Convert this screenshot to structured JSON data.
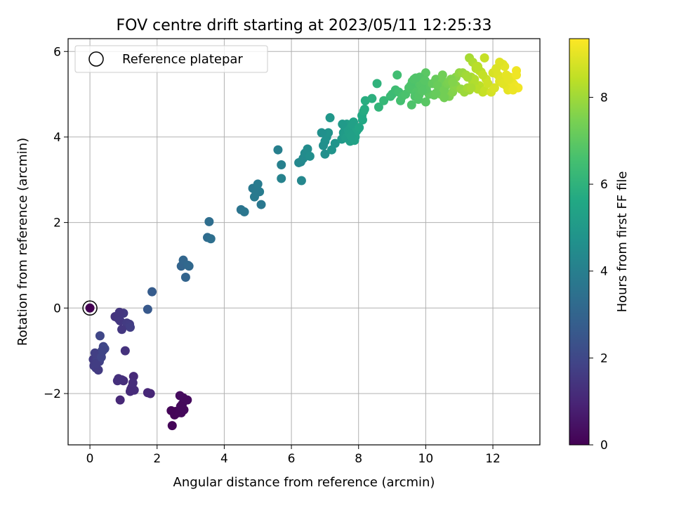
{
  "chart_data": {
    "type": "scatter",
    "title": "FOV centre drift starting at 2023/05/11 12:25:33",
    "xlabel": "Angular distance from reference (arcmin)",
    "ylabel": "Rotation from reference (arcmin)",
    "xlim": [
      -0.65,
      13.4
    ],
    "ylim": [
      -3.2,
      6.3
    ],
    "xticks": [
      0,
      2,
      4,
      6,
      8,
      10,
      12
    ],
    "yticks": [
      -2,
      0,
      2,
      4,
      6
    ],
    "xtick_labels": [
      "0",
      "2",
      "4",
      "6",
      "8",
      "10",
      "12"
    ],
    "ytick_labels": [
      "−2",
      "0",
      "2",
      "4",
      "6"
    ],
    "grid": true,
    "legend": {
      "placement": "top-left",
      "entries": [
        "Reference platepar"
      ]
    },
    "reference_point": {
      "x": 0.0,
      "y": 0.0
    },
    "colorbar": {
      "label": "Hours from first FF file",
      "colormap": "viridis",
      "range": [
        0,
        9.35
      ],
      "ticks": [
        0,
        2,
        4,
        6,
        8
      ],
      "tick_labels": [
        "0",
        "2",
        "4",
        "6",
        "8"
      ]
    },
    "series": [
      {
        "x": [
          0.0,
          2.45,
          2.52,
          2.62,
          2.72,
          2.8,
          2.75,
          2.9,
          2.55,
          2.78,
          2.68,
          2.42,
          2.7,
          1.8,
          1.72,
          1.3,
          1.25,
          1.22,
          1.32,
          1.28,
          1.0,
          0.95,
          0.85,
          0.9,
          0.82,
          1.2,
          0.1,
          0.12,
          0.18,
          0.22,
          0.28,
          0.32,
          0.36,
          0.4,
          0.44,
          0.3,
          0.25,
          0.2,
          0.15,
          0.34,
          0.38,
          0.75,
          0.85,
          0.9,
          1.0,
          1.1,
          1.18,
          1.2,
          1.05,
          0.95,
          0.88,
          1.72,
          1.85,
          2.72,
          2.78,
          2.95,
          2.85,
          2.92,
          3.5,
          3.6,
          3.55,
          4.5,
          4.6,
          4.85,
          4.9,
          5.0,
          5.05,
          5.1,
          4.95,
          5.6,
          5.7,
          5.7,
          6.22,
          6.28,
          6.35,
          6.4,
          6.48,
          6.55,
          6.3,
          6.95,
          7.0,
          7.05,
          7.1,
          7.15,
          7.0,
          6.9,
          7.2,
          7.3,
          7.5,
          7.55,
          7.6,
          7.65,
          7.7,
          7.75,
          7.8,
          7.85,
          7.9,
          7.95,
          8.0,
          7.58,
          7.68,
          7.82,
          7.92,
          8.02,
          7.62,
          7.72,
          7.88,
          7.52,
          7.78,
          8.1,
          8.15,
          8.2,
          8.12,
          8.18,
          8.4,
          8.55,
          8.6,
          8.75,
          8.95,
          9.0,
          9.1,
          9.15,
          9.2,
          9.25,
          9.3,
          9.4,
          9.5,
          9.6,
          9.7,
          9.8,
          9.9,
          10.0,
          10.1,
          9.55,
          9.65,
          9.75,
          9.85,
          9.95,
          10.05,
          9.62,
          9.72,
          9.82,
          9.92,
          10.02,
          9.68,
          9.78,
          9.88,
          9.98,
          9.58,
          9.7,
          9.8,
          9.9,
          10.0,
          10.2,
          10.3,
          10.4,
          10.5,
          10.6,
          10.7,
          10.8,
          10.9,
          11.0,
          10.35,
          10.45,
          10.55,
          10.65,
          10.75,
          10.85,
          10.25,
          10.5,
          10.7,
          10.9,
          11.05,
          10.3,
          10.55,
          10.8,
          11.1,
          11.2,
          11.3,
          11.4,
          11.5,
          11.6,
          11.7,
          11.8,
          11.15,
          11.25,
          11.35,
          11.45,
          11.55,
          11.65,
          11.75,
          11.85,
          11.95,
          11.3,
          11.4,
          11.5,
          11.6,
          11.7,
          11.35,
          11.45,
          11.55,
          11.25,
          11.75,
          12.0,
          12.1,
          12.2,
          12.3,
          12.4,
          12.5,
          12.6,
          12.7,
          12.05,
          12.15,
          12.25,
          12.35,
          12.45,
          12.55,
          12.65,
          12.75,
          12.2,
          12.4,
          12.6,
          12.3,
          12.5,
          12.7,
          12.1,
          12.45
        ],
        "y": [
          0.0,
          -2.75,
          -2.5,
          -2.45,
          -2.45,
          -2.38,
          -2.25,
          -2.15,
          -2.42,
          -2.1,
          -2.05,
          -2.4,
          -2.3,
          -2.0,
          -1.98,
          -1.6,
          -1.85,
          -1.9,
          -1.92,
          -1.75,
          -1.7,
          -1.68,
          -1.65,
          -2.15,
          -1.7,
          -1.95,
          -1.2,
          -1.35,
          -1.4,
          -1.2,
          -1.25,
          -1.1,
          -1.0,
          -0.9,
          -0.95,
          -0.65,
          -1.45,
          -1.3,
          -1.05,
          -1.15,
          -1.0,
          -0.2,
          -0.25,
          -0.3,
          -0.12,
          -0.35,
          -0.38,
          -0.45,
          -1.0,
          -0.5,
          -0.1,
          -0.03,
          0.38,
          0.98,
          1.12,
          0.98,
          0.72,
          1.0,
          1.65,
          1.62,
          2.02,
          2.3,
          2.25,
          2.8,
          2.6,
          2.9,
          2.72,
          2.42,
          2.7,
          3.7,
          3.35,
          3.03,
          3.4,
          3.42,
          3.5,
          3.62,
          3.72,
          3.55,
          2.98,
          3.8,
          3.9,
          4.0,
          4.1,
          4.45,
          3.6,
          4.1,
          3.7,
          3.85,
          3.95,
          4.1,
          4.2,
          4.3,
          4.0,
          3.9,
          4.25,
          4.35,
          4.0,
          4.15,
          4.2,
          4.05,
          4.18,
          4.28,
          4.12,
          4.22,
          3.98,
          4.08,
          3.92,
          4.3,
          4.02,
          4.5,
          4.6,
          4.85,
          4.4,
          4.65,
          4.9,
          5.25,
          4.7,
          4.85,
          4.95,
          5.0,
          5.1,
          5.45,
          5.05,
          4.85,
          4.95,
          5.0,
          5.15,
          5.3,
          5.25,
          5.1,
          5.2,
          5.5,
          5.0,
          5.2,
          5.35,
          5.0,
          5.3,
          5.15,
          5.25,
          5.1,
          5.05,
          5.4,
          5.25,
          5.12,
          4.95,
          4.88,
          5.18,
          5.32,
          4.75,
          5.38,
          4.98,
          5.08,
          4.82,
          5.25,
          5.35,
          5.1,
          5.3,
          5.2,
          4.95,
          5.05,
          5.4,
          5.5,
          5.2,
          5.0,
          5.1,
          5.25,
          5.35,
          5.15,
          4.98,
          5.45,
          5.3,
          5.2,
          5.12,
          5.02,
          4.92,
          5.28,
          5.5,
          5.45,
          5.1,
          5.3,
          5.6,
          5.2,
          5.05,
          5.35,
          5.05,
          5.15,
          5.4,
          5.22,
          5.12,
          5.52,
          5.08,
          5.25,
          5.05,
          5.85,
          5.75,
          5.65,
          5.55,
          5.45,
          5.15,
          5.35,
          5.65,
          5.4,
          5.85,
          5.5,
          5.6,
          5.3,
          5.7,
          5.2,
          5.4,
          5.25,
          5.55,
          5.15,
          5.45,
          5.35,
          5.65,
          5.1,
          5.3,
          5.2,
          5.15,
          5.75,
          5.45,
          5.1,
          5.25,
          5.35,
          5.45,
          5.6,
          5.35
        ],
        "color_values": [
          0.0,
          0.1,
          0.12,
          0.15,
          0.18,
          0.2,
          0.22,
          0.25,
          0.13,
          0.24,
          0.27,
          0.11,
          0.21,
          1.0,
          1.02,
          1.1,
          1.12,
          1.15,
          1.18,
          1.2,
          1.22,
          1.25,
          1.28,
          1.05,
          1.3,
          1.14,
          1.6,
          1.65,
          1.7,
          1.75,
          1.8,
          1.85,
          1.9,
          1.95,
          2.0,
          1.98,
          1.62,
          1.68,
          1.72,
          1.88,
          1.92,
          1.4,
          1.45,
          1.5,
          1.55,
          1.6,
          1.65,
          1.7,
          1.35,
          1.5,
          1.45,
          2.6,
          2.7,
          3.0,
          3.05,
          3.1,
          3.0,
          3.15,
          3.3,
          3.4,
          3.35,
          3.6,
          3.65,
          3.75,
          3.8,
          3.85,
          3.9,
          3.7,
          3.8,
          4.0,
          4.05,
          4.1,
          4.3,
          4.35,
          4.4,
          4.45,
          4.5,
          4.55,
          4.3,
          4.6,
          4.65,
          4.7,
          4.75,
          4.9,
          4.6,
          4.65,
          4.8,
          4.85,
          5.0,
          5.05,
          5.1,
          5.15,
          5.2,
          5.25,
          5.3,
          5.35,
          5.4,
          5.45,
          5.5,
          5.1,
          5.2,
          5.3,
          5.4,
          5.5,
          5.15,
          5.25,
          5.35,
          5.05,
          5.3,
          5.6,
          5.7,
          5.8,
          5.6,
          5.75,
          5.9,
          6.0,
          6.1,
          6.2,
          6.3,
          6.35,
          6.4,
          6.45,
          6.5,
          6.55,
          6.6,
          6.65,
          6.7,
          6.75,
          6.8,
          6.85,
          6.9,
          6.95,
          7.0,
          6.7,
          6.75,
          6.8,
          6.85,
          6.9,
          6.95,
          6.72,
          6.78,
          6.82,
          6.88,
          6.92,
          6.74,
          6.79,
          6.84,
          6.89,
          6.71,
          6.77,
          6.81,
          6.86,
          6.91,
          7.1,
          7.15,
          7.2,
          7.3,
          7.4,
          7.5,
          7.6,
          7.7,
          7.8,
          7.2,
          7.3,
          7.35,
          7.45,
          7.55,
          7.65,
          7.1,
          7.3,
          7.5,
          7.7,
          7.85,
          7.15,
          7.35,
          7.6,
          7.9,
          8.0,
          8.1,
          8.2,
          8.3,
          8.4,
          8.5,
          8.6,
          7.95,
          8.05,
          8.15,
          8.25,
          8.35,
          8.45,
          8.55,
          8.65,
          8.75,
          8.1,
          8.2,
          8.3,
          8.4,
          8.5,
          8.15,
          8.25,
          8.35,
          8.05,
          8.55,
          8.8,
          8.85,
          8.9,
          8.95,
          9.0,
          9.05,
          9.1,
          9.15,
          8.82,
          8.87,
          8.92,
          8.97,
          9.02,
          9.07,
          9.12,
          9.17,
          8.9,
          9.0,
          9.1,
          8.95,
          9.05,
          9.15,
          8.85,
          9.0
        ]
      }
    ]
  }
}
